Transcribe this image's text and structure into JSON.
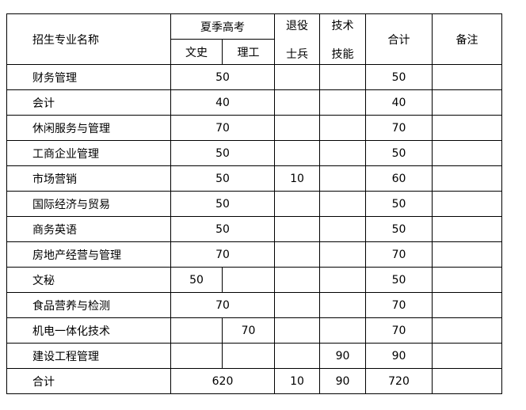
{
  "header": {
    "name": "招生专业名称",
    "summer": "夏季高考",
    "wenshi": "文史",
    "ligong": "理工",
    "veteran": "退役士兵",
    "veteran_l1": "退役",
    "veteran_l2": "士兵",
    "skill_l1": "技术",
    "skill_l2": "技能",
    "total": "合计",
    "remark": "备注"
  },
  "rows": [
    {
      "name": "财务管理",
      "summer": "50",
      "veteran": "",
      "skill": "",
      "total": "50",
      "remark": ""
    },
    {
      "name": "会计",
      "summer": "40",
      "veteran": "",
      "skill": "",
      "total": "40",
      "remark": ""
    },
    {
      "name": "休闲服务与管理",
      "summer": "70",
      "veteran": "",
      "skill": "",
      "total": "70",
      "remark": ""
    },
    {
      "name": "工商企业管理",
      "summer": "50",
      "veteran": "",
      "skill": "",
      "total": "50",
      "remark": ""
    },
    {
      "name": "市场营销",
      "summer": "50",
      "veteran": "10",
      "skill": "",
      "total": "60",
      "remark": ""
    },
    {
      "name": "国际经济与贸易",
      "summer": "50",
      "veteran": "",
      "skill": "",
      "total": "50",
      "remark": ""
    },
    {
      "name": "商务英语",
      "summer": "50",
      "veteran": "",
      "skill": "",
      "total": "50",
      "remark": ""
    },
    {
      "name": "房地产经营与管理",
      "summer": "70",
      "veteran": "",
      "skill": "",
      "total": "70",
      "remark": ""
    },
    {
      "name": "文秘",
      "wenshi": "50",
      "ligong": "",
      "veteran": "",
      "skill": "",
      "total": "50",
      "remark": ""
    },
    {
      "name": "食品营养与检测",
      "summer": "70",
      "veteran": "",
      "skill": "",
      "total": "70",
      "remark": ""
    },
    {
      "name": "机电一体化技术",
      "wenshi": "",
      "ligong": "70",
      "veteran": "",
      "skill": "",
      "total": "70",
      "remark": ""
    },
    {
      "name": "建设工程管理",
      "wenshi": "",
      "ligong": "",
      "veteran": "",
      "skill": "90",
      "total": "90",
      "remark": ""
    },
    {
      "name": "合计",
      "summer": "620",
      "veteran": "10",
      "skill": "90",
      "total": "720",
      "remark": ""
    }
  ]
}
